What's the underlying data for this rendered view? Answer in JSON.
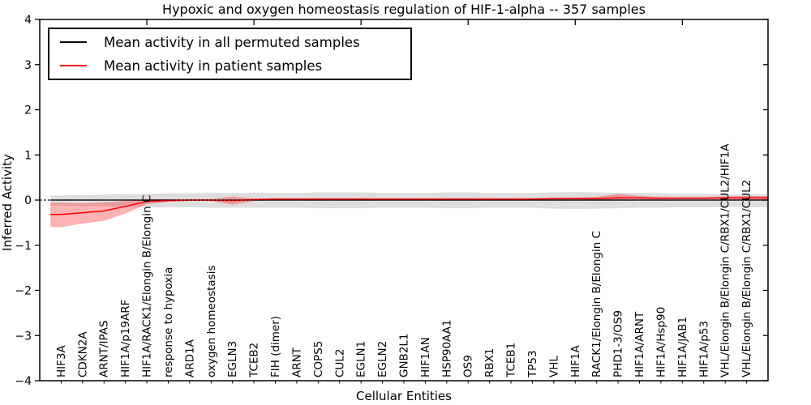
{
  "figure": {
    "title": "Hypoxic and oxygen homeostasis regulation of HIF-1-alpha -- 357 samples"
  },
  "chart_data": {
    "type": "line",
    "title": "Hypoxic and oxygen homeostasis regulation of HIF-1-alpha -- 357 samples",
    "xlabel": "Cellular Entities",
    "ylabel": "Inferred Activity",
    "ylim": [
      -4,
      4
    ],
    "ytick_values": [
      4,
      3,
      2,
      1,
      0,
      -1,
      -2,
      -3,
      -4
    ],
    "ytick_labels": [
      "4",
      "3",
      "2",
      "1",
      "0",
      "−1",
      "−2",
      "−3",
      "−4"
    ],
    "xlim": [
      0,
      34
    ],
    "top_axis_tick_positions": [
      5,
      10,
      15,
      20,
      25,
      30
    ],
    "grid": false,
    "zero_line": {
      "y": 0,
      "style": "dashed",
      "color": "#000000"
    },
    "legend": {
      "position": "upper-left"
    },
    "categories": [
      "HIF3A",
      "CDKN2A",
      "ARNT/IPAS",
      "HIF1A/p19ARF",
      "HIF1A/RACK1/Elongin B/Elongin C",
      "response to hypoxia",
      "ARD1A",
      "oxygen homeostasis",
      "EGLN3",
      "TCEB2",
      "FIH (dimer)",
      "ARNT",
      "COPS5",
      "CUL2",
      "EGLN1",
      "EGLN2",
      "GNB2L1",
      "HIF1AN",
      "HSP90AA1",
      "OS9",
      "RBX1",
      "TCEB1",
      "TP53",
      "VHL",
      "HIF1A",
      "RACK1/Elongin B/Elongin C",
      "PHD1-3/OS9",
      "HIF1A/ARNT",
      "HIF1A/Hsp90",
      "HIF1A/JAB1",
      "HIF1A/p53",
      "VHL/Elongin B/Elongin C/RBX1/CUL2/HIF1A",
      "VHL/Elongin B/Elongin C/RBX1/CUL2"
    ],
    "series": [
      {
        "name": "Mean activity in all permuted samples",
        "color": "#000000",
        "line_width": 1.3,
        "band_color": "rgba(0,0,0,0.13)",
        "values": [
          0,
          0,
          0,
          0,
          0,
          0,
          0,
          0,
          0,
          0,
          0,
          0,
          0,
          0,
          0,
          0,
          0,
          0,
          0,
          0,
          0,
          0,
          0,
          0,
          0,
          0,
          0,
          0,
          0,
          0,
          0,
          0,
          0
        ],
        "band_upper": [
          0.1,
          0.11,
          0.12,
          0.13,
          0.14,
          0.15,
          0.15,
          0.16,
          0.16,
          0.16,
          0.16,
          0.16,
          0.17,
          0.17,
          0.17,
          0.16,
          0.16,
          0.16,
          0.17,
          0.17,
          0.16,
          0.16,
          0.16,
          0.17,
          0.18,
          0.17,
          0.16,
          0.16,
          0.15,
          0.14,
          0.14,
          0.13,
          0.13
        ],
        "band_lower": [
          -0.12,
          -0.13,
          -0.14,
          -0.15,
          -0.16,
          -0.16,
          -0.16,
          -0.17,
          -0.17,
          -0.17,
          -0.17,
          -0.17,
          -0.18,
          -0.18,
          -0.18,
          -0.17,
          -0.17,
          -0.17,
          -0.18,
          -0.18,
          -0.17,
          -0.17,
          -0.17,
          -0.19,
          -0.2,
          -0.19,
          -0.18,
          -0.17,
          -0.17,
          -0.16,
          -0.16,
          -0.15,
          -0.16
        ]
      },
      {
        "name": "Mean activity in patient samples",
        "color": "#ff0000",
        "line_width": 1.5,
        "band_color": "rgba(255,0,0,0.30)",
        "values": [
          -0.32,
          -0.28,
          -0.24,
          -0.14,
          -0.03,
          -0.01,
          0,
          0,
          -0.01,
          0.01,
          0.02,
          0.02,
          0.02,
          0.02,
          0.02,
          0.02,
          0.02,
          0.02,
          0.02,
          0.02,
          0.02,
          0.02,
          0.02,
          0.03,
          0.03,
          0.03,
          0.05,
          0.05,
          0.04,
          0.04,
          0.04,
          0.05,
          0.05
        ],
        "band_upper": [
          -0.06,
          -0.07,
          -0.05,
          -0.02,
          0.02,
          0.02,
          0.02,
          0.02,
          0.08,
          0.03,
          0.04,
          0.04,
          0.04,
          0.04,
          0.04,
          0.04,
          0.04,
          0.04,
          0.04,
          0.04,
          0.04,
          0.04,
          0.04,
          0.05,
          0.06,
          0.07,
          0.14,
          0.09,
          0.07,
          0.07,
          0.07,
          0.08,
          0.09
        ],
        "band_lower": [
          -0.6,
          -0.52,
          -0.46,
          -0.3,
          -0.09,
          -0.04,
          -0.02,
          -0.02,
          -0.1,
          -0.02,
          0,
          0,
          0,
          0,
          0,
          0,
          0,
          0,
          0,
          0,
          0,
          0,
          0,
          0.01,
          0.01,
          0.01,
          -0.01,
          0.01,
          0.01,
          0.02,
          0.02,
          0.01,
          0
        ]
      }
    ]
  }
}
